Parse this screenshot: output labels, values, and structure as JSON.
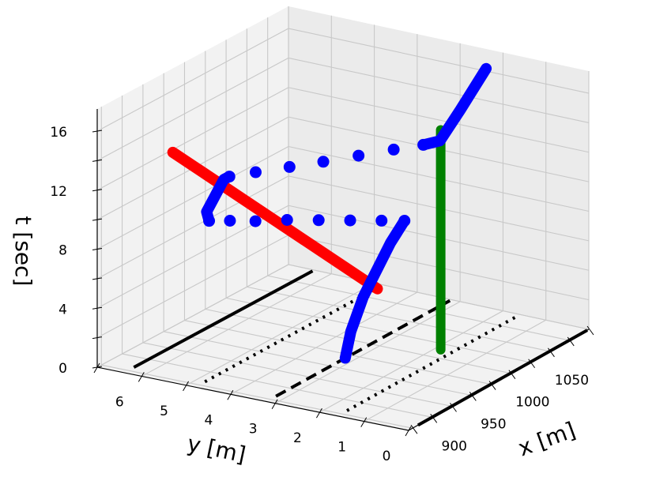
{
  "chart_data": {
    "type": "line3d",
    "title": "",
    "xlabel": "x [m]",
    "ylabel": "y [m]",
    "zlabel": "t [sec]",
    "x_ticks": [
      "900",
      "950",
      "1000",
      "1050"
    ],
    "y_ticks": [
      "0",
      "1",
      "2",
      "3",
      "4",
      "5",
      "6"
    ],
    "z_ticks": [
      "0",
      "4",
      "8",
      "12",
      "16"
    ],
    "xlim": [
      870,
      1100
    ],
    "ylim": [
      0,
      7
    ],
    "zlim": [
      0,
      17.5
    ],
    "grid": true,
    "lane_lines": [
      {
        "y": 0,
        "style": "solid"
      },
      {
        "y": 1.6,
        "style": "dotted"
      },
      {
        "y": 3.2,
        "style": "dashed"
      },
      {
        "y": 4.8,
        "style": "dotted"
      },
      {
        "y": 6.4,
        "style": "solid"
      }
    ],
    "series": [
      {
        "color": "#ff0000",
        "style": "thick-line",
        "points": [
          [
            870,
            5.3,
            15.6
          ],
          [
            1008,
            3.2,
            3.5
          ]
        ]
      },
      {
        "color": "#008000",
        "style": "thick-line",
        "points": [
          [
            1000,
            1.6,
            0.6
          ],
          [
            1000,
            1.6,
            15.5
          ]
        ]
      },
      {
        "color": "#0000ff",
        "style": "thick-line",
        "points": [
          [
            968,
            3.2,
            0
          ],
          [
            975,
            3.2,
            1.6
          ],
          [
            985,
            3.1,
            3.7
          ],
          [
            1008,
            2.9,
            6.8
          ],
          [
            1020,
            2.8,
            8.0
          ]
        ]
      },
      {
        "color": "#0000ff",
        "style": "dots",
        "points": [
          [
            1020,
            2.8,
            8.0
          ],
          [
            1005,
            3.05,
            8.3
          ],
          [
            985,
            3.4,
            8.7
          ],
          [
            965,
            3.75,
            9.1
          ],
          [
            945,
            4.1,
            9.5
          ],
          [
            925,
            4.45,
            9.8
          ],
          [
            910,
            4.75,
            10.1
          ],
          [
            898,
            5.0,
            10.3
          ]
        ]
      },
      {
        "color": "#0000ff",
        "style": "thick-line",
        "points": [
          [
            898,
            5.0,
            10.3
          ],
          [
            895,
            5.0,
            11.0
          ],
          [
            908,
            4.85,
            12.9
          ],
          [
            912,
            4.8,
            13.0
          ]
        ]
      },
      {
        "color": "#0000ff",
        "style": "dots",
        "points": [
          [
            912,
            4.8,
            13.0
          ],
          [
            928,
            4.5,
            13.0
          ],
          [
            948,
            4.1,
            13.0
          ],
          [
            968,
            3.7,
            13.0
          ],
          [
            990,
            3.3,
            13.0
          ],
          [
            1012,
            2.9,
            13.0
          ],
          [
            1030,
            2.55,
            13.0
          ]
        ]
      },
      {
        "color": "#0000ff",
        "style": "thick-line",
        "points": [
          [
            1030,
            2.55,
            13.0
          ],
          [
            1040,
            2.35,
            13.1
          ],
          [
            1052,
            2.1,
            15.0
          ],
          [
            1068,
            1.8,
            17.5
          ]
        ]
      }
    ]
  }
}
